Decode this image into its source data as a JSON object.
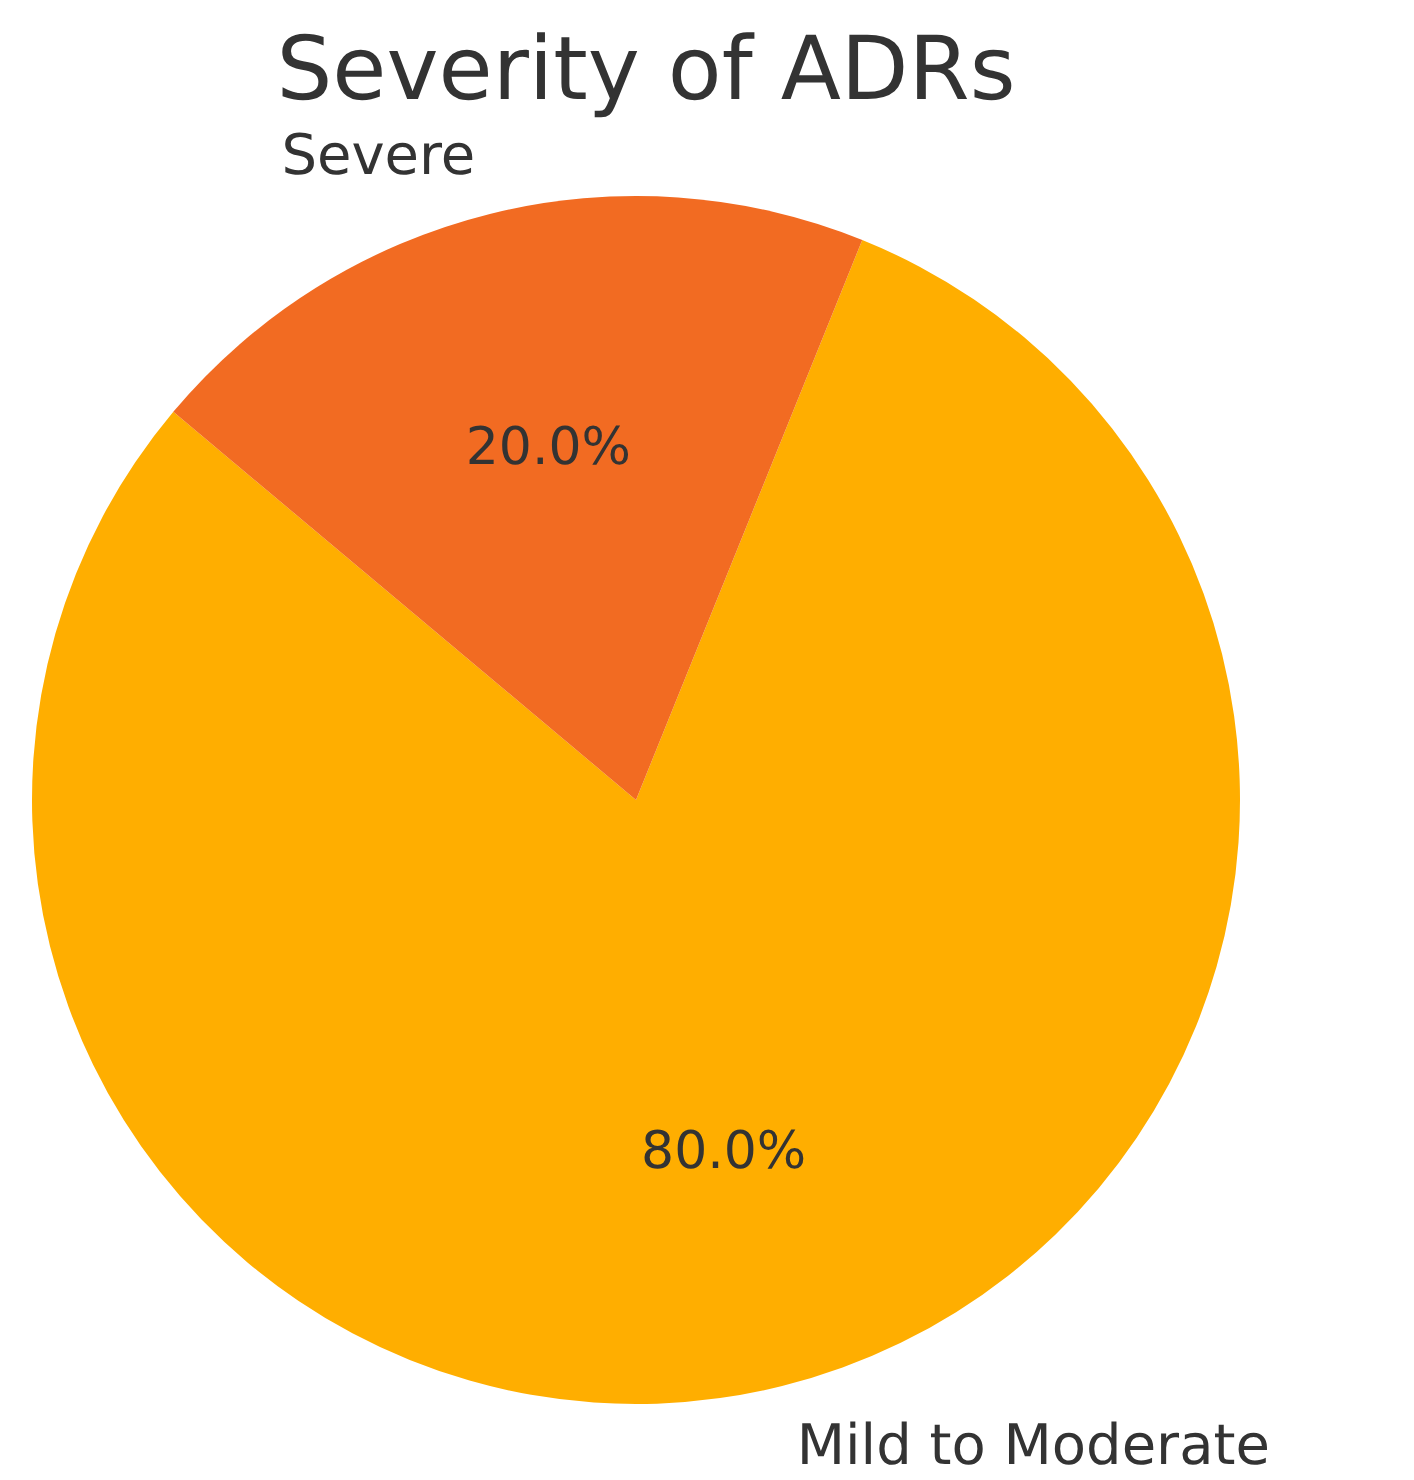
{
  "chart_data": {
    "type": "pie",
    "title": "Severity of ADRs",
    "categories": [
      "Mild to Moderate",
      "Severe"
    ],
    "values": [
      80,
      20
    ],
    "value_labels": [
      "80.0%",
      "20.0%"
    ],
    "colors": [
      "#ffae00",
      "#f26b22"
    ]
  }
}
